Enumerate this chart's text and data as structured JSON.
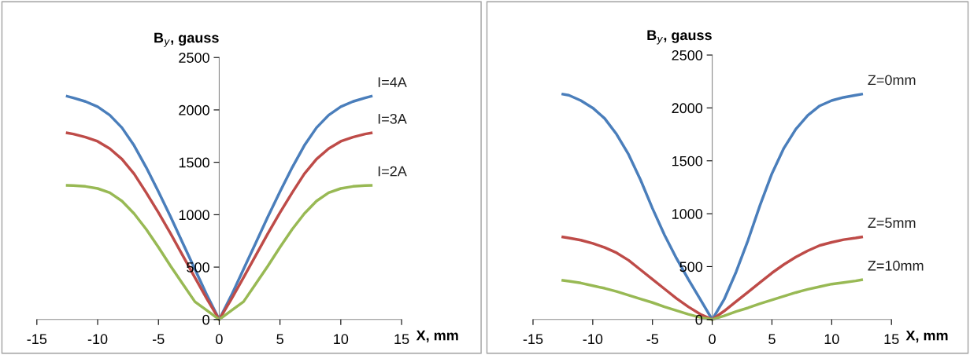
{
  "chart_data": [
    {
      "type": "line",
      "xlabel": "X, mm",
      "ylabel": "B$_{y}$, gauss",
      "xlim": [
        -15,
        15
      ],
      "ylim": [
        0,
        2500
      ],
      "xticks": [
        -15,
        -10,
        -5,
        0,
        5,
        10,
        15
      ],
      "yticks": [
        0,
        500,
        1000,
        1500,
        2000,
        2500
      ],
      "grid": false,
      "legend": false,
      "marker": "none",
      "line_style": "solid",
      "x": [
        -12.5,
        -12,
        -11,
        -10,
        -9,
        -8,
        -7,
        -6,
        -5,
        -4,
        -3,
        -2,
        -1,
        0,
        1,
        2,
        3,
        4,
        5,
        6,
        7,
        8,
        9,
        10,
        11,
        12,
        12.5
      ],
      "series": [
        {
          "name": "I=4A",
          "color": "#4a7ebb",
          "values": [
            2130,
            2115,
            2080,
            2030,
            1950,
            1830,
            1660,
            1450,
            1220,
            980,
            730,
            480,
            230,
            0,
            230,
            480,
            730,
            980,
            1220,
            1450,
            1660,
            1830,
            1950,
            2030,
            2080,
            2115,
            2130
          ]
        },
        {
          "name": "I=3A",
          "color": "#be4b48",
          "values": [
            1780,
            1770,
            1740,
            1700,
            1630,
            1530,
            1390,
            1210,
            1020,
            820,
            610,
            400,
            195,
            0,
            195,
            400,
            610,
            820,
            1020,
            1210,
            1390,
            1530,
            1630,
            1700,
            1740,
            1770,
            1780
          ]
        },
        {
          "name": "I=2A",
          "color": "#98b954",
          "values": [
            1280,
            1278,
            1270,
            1250,
            1210,
            1130,
            1010,
            860,
            690,
            510,
            340,
            170,
            85,
            0,
            85,
            170,
            340,
            510,
            690,
            860,
            1010,
            1130,
            1210,
            1250,
            1270,
            1278,
            1280
          ]
        }
      ]
    },
    {
      "type": "line",
      "xlabel": "X, mm",
      "ylabel": "B$_{y}$, gauss",
      "xlim": [
        -15,
        15
      ],
      "ylim": [
        0,
        2500
      ],
      "xticks": [
        -15,
        -10,
        -5,
        0,
        5,
        10,
        15
      ],
      "yticks": [
        0,
        500,
        1000,
        1500,
        2000,
        2500
      ],
      "grid": false,
      "legend": false,
      "marker": "none",
      "line_style": "solid",
      "x": [
        -12.5,
        -12,
        -11,
        -10,
        -9,
        -8,
        -7,
        -6,
        -5,
        -4,
        -3,
        -2,
        -1,
        0,
        1,
        2,
        3,
        4,
        5,
        6,
        7,
        8,
        9,
        10,
        11,
        12,
        12.5
      ],
      "series": [
        {
          "name": "Z=0mm",
          "color": "#4a7ebb",
          "values": [
            2130,
            2120,
            2070,
            2000,
            1900,
            1750,
            1560,
            1320,
            1050,
            800,
            580,
            380,
            190,
            0,
            190,
            450,
            750,
            1080,
            1380,
            1620,
            1800,
            1930,
            2020,
            2070,
            2100,
            2120,
            2130
          ]
        },
        {
          "name": "Z=5mm",
          "color": "#be4b48",
          "values": [
            780,
            770,
            750,
            720,
            680,
            630,
            560,
            470,
            380,
            290,
            200,
            120,
            50,
            0,
            80,
            170,
            260,
            350,
            440,
            520,
            590,
            650,
            700,
            730,
            755,
            770,
            780
          ]
        },
        {
          "name": "Z=10mm",
          "color": "#98b954",
          "values": [
            370,
            362,
            345,
            320,
            295,
            265,
            230,
            195,
            160,
            120,
            85,
            50,
            20,
            0,
            35,
            75,
            110,
            150,
            185,
            220,
            255,
            285,
            310,
            335,
            350,
            365,
            375
          ]
        }
      ]
    }
  ]
}
